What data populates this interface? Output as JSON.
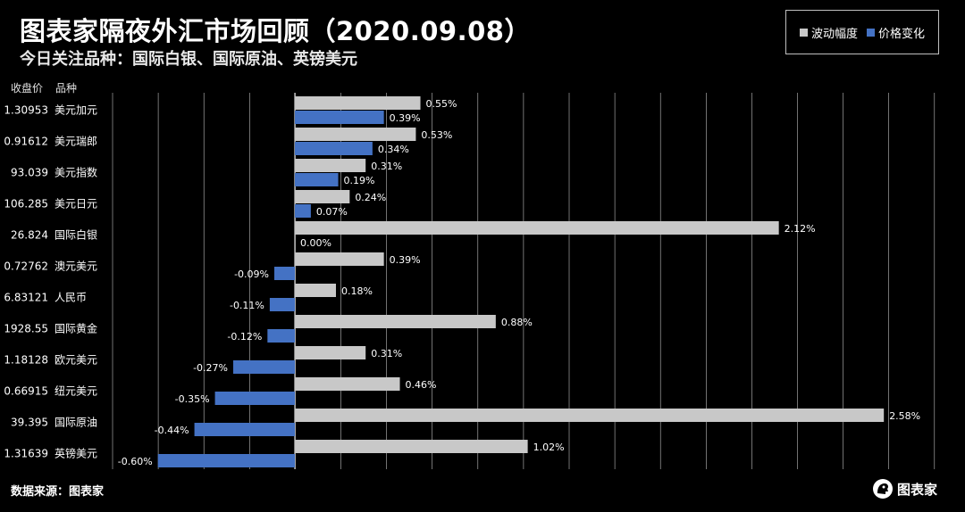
{
  "header": {
    "title": "图表家隔夜外汇市场回顾（2020.09.08）",
    "subtitle": "今日关注品种：国际白银、国际原油、英镑美元"
  },
  "legend": {
    "volatility_label": "波动幅度",
    "price_change_label": "价格变化"
  },
  "columns": {
    "close_label": "收盘价",
    "instrument_label": "品种"
  },
  "footer": {
    "source": "数据来源：图表家",
    "brand": "图表家"
  },
  "colors": {
    "volatility": "#c8c8c8",
    "price_change": "#4472c4",
    "grid": "#ffffff",
    "background": "#000000"
  },
  "chart_data": {
    "type": "bar",
    "orientation": "horizontal",
    "xlim": [
      -0.006,
      0.028
    ],
    "grid": true,
    "legend_position": "top-right",
    "categories": [
      "美元加元",
      "美元瑞郎",
      "美元指数",
      "美元日元",
      "国际白银",
      "澳元美元",
      "人民币",
      "国际黄金",
      "欧元美元",
      "纽元美元",
      "国际原油",
      "英镑美元"
    ],
    "close_prices": [
      "1.30953",
      "0.91612",
      "93.039",
      "106.285",
      "26.824",
      "0.72762",
      "6.83121",
      "1928.55",
      "1.18128",
      "0.66915",
      "39.395",
      "1.31639"
    ],
    "series": [
      {
        "name": "波动幅度",
        "values": [
          0.0055,
          0.0053,
          0.0031,
          0.0024,
          0.0212,
          0.0039,
          0.0018,
          0.0088,
          0.0031,
          0.0046,
          0.0258,
          0.0102
        ],
        "labels": [
          "0.55%",
          "0.53%",
          "0.31%",
          "0.24%",
          "2.12%",
          "0.39%",
          "0.18%",
          "0.88%",
          "0.31%",
          "0.46%",
          "2.58%",
          "1.02%"
        ]
      },
      {
        "name": "价格变化",
        "values": [
          0.0039,
          0.0034,
          0.0019,
          0.0007,
          0.0,
          -0.0009,
          -0.0011,
          -0.0012,
          -0.0027,
          -0.0035,
          -0.0044,
          -0.006
        ],
        "labels": [
          "0.39%",
          "0.34%",
          "0.19%",
          "0.07%",
          "0.00%",
          "-0.09%",
          "-0.11%",
          "-0.12%",
          "-0.27%",
          "-0.35%",
          "-0.44%",
          "-0.60%"
        ]
      }
    ]
  }
}
